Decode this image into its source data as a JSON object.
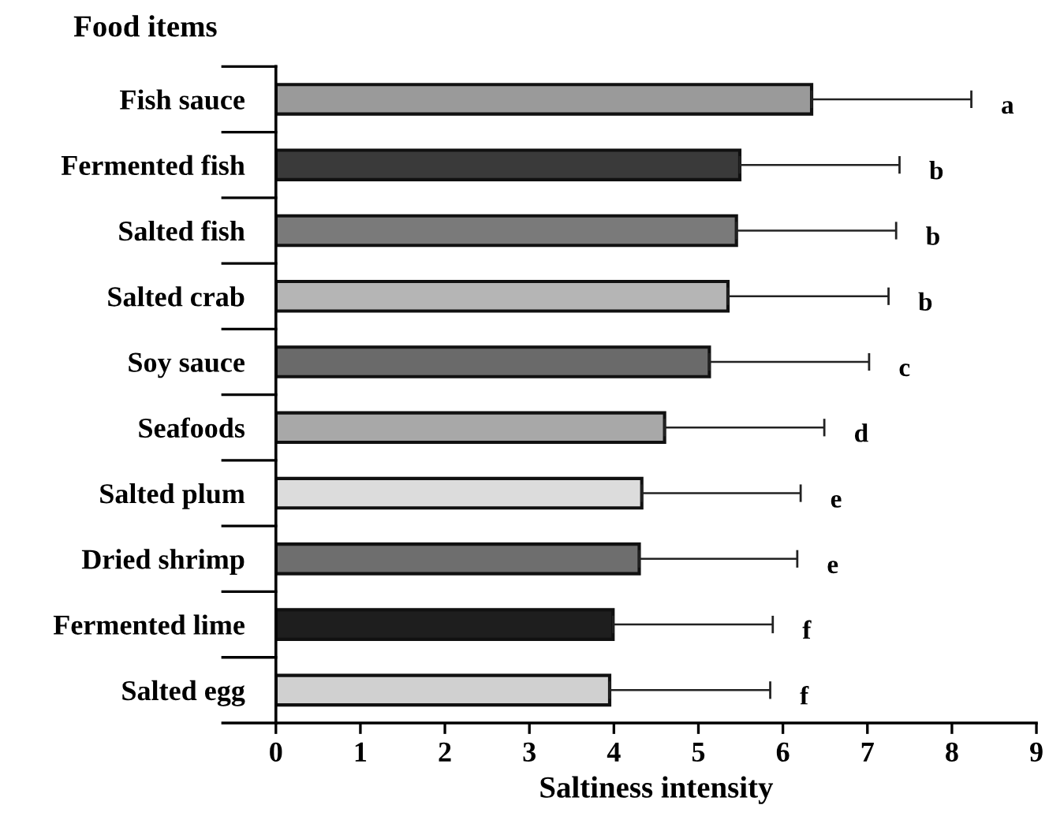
{
  "chart_data": {
    "type": "bar",
    "orientation": "horizontal",
    "ylabel": "Food items",
    "xlabel": "Saltiness intensity",
    "categories": [
      "Fish sauce",
      "Fermented fish",
      "Salted fish",
      "Salted crab",
      "Soy sauce",
      "Seafoods",
      "Salted plum",
      "Dried shrimp",
      "Fermented lime",
      "Salted egg"
    ],
    "values": [
      6.34,
      5.49,
      5.45,
      5.35,
      5.13,
      4.6,
      4.33,
      4.3,
      3.99,
      3.95
    ],
    "errors": [
      [
        6.34,
        8.23
      ],
      [
        5.49,
        7.38
      ],
      [
        5.45,
        7.34
      ],
      [
        5.35,
        7.25
      ],
      [
        5.13,
        7.02
      ],
      [
        4.6,
        6.49
      ],
      [
        4.33,
        6.21
      ],
      [
        4.3,
        6.17
      ],
      [
        3.99,
        5.88
      ],
      [
        3.95,
        5.85
      ]
    ],
    "colors": [
      "#9a9a9a",
      "#3a3a3a",
      "#7a7a7a",
      "#b5b5b5",
      "#6a6a6a",
      "#a8a8a8",
      "#dcdcdc",
      "#6e6e6e",
      "#1e1e1e",
      "#d0d0d0"
    ],
    "annotations": [
      "a",
      "b",
      "b",
      "b",
      "c",
      "d",
      "e",
      "e",
      "f",
      "f"
    ],
    "xlim": [
      0,
      9
    ],
    "xticks": [
      0,
      1,
      2,
      3,
      4,
      5,
      6,
      7,
      8,
      9
    ],
    "grid": false,
    "legend": false
  }
}
